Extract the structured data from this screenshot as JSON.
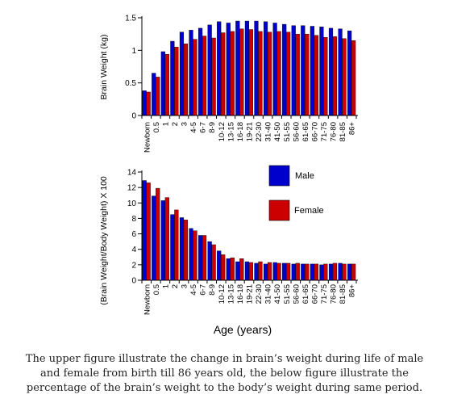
{
  "chart_data": [
    {
      "type": "bar",
      "ylabel": "Brain Weight (kg)",
      "ylim": [
        0,
        1.5
      ],
      "yticks": [
        "0",
        "0.5",
        "1",
        "1.5"
      ],
      "categories": [
        "Newborn",
        "0.5",
        "1",
        "2",
        "3",
        "4-5",
        "6-7",
        "8-9",
        "10-12",
        "13-15",
        "16-18",
        "19-21",
        "22-30",
        "31-40",
        "41-50",
        "51-55",
        "56-60",
        "61-65",
        "66-70",
        "71-75",
        "76-80",
        "81-85",
        "86+"
      ],
      "series": [
        {
          "name": "Male",
          "color": "#0000cc",
          "values": [
            0.38,
            0.65,
            0.98,
            1.14,
            1.28,
            1.31,
            1.34,
            1.39,
            1.44,
            1.42,
            1.45,
            1.45,
            1.45,
            1.44,
            1.42,
            1.4,
            1.38,
            1.38,
            1.37,
            1.36,
            1.34,
            1.33,
            1.3
          ]
        },
        {
          "name": "Female",
          "color": "#cc0000",
          "values": [
            0.36,
            0.59,
            0.94,
            1.05,
            1.1,
            1.17,
            1.22,
            1.19,
            1.27,
            1.29,
            1.33,
            1.32,
            1.29,
            1.28,
            1.29,
            1.28,
            1.25,
            1.25,
            1.23,
            1.2,
            1.21,
            1.18,
            1.15
          ]
        }
      ]
    },
    {
      "type": "bar",
      "xlabel": "Age (years)",
      "ylabel": "(Brain Weight/Body Weight) X 100",
      "ylim": [
        0,
        14
      ],
      "yticks": [
        "0",
        "2",
        "4",
        "6",
        "8",
        "10",
        "12",
        "14"
      ],
      "categories": [
        "Newborn",
        "0.5",
        "1",
        "2",
        "3",
        "4-5",
        "6-7",
        "8-9",
        "10-12",
        "13-15",
        "16-18",
        "19-21",
        "22-30",
        "31-40",
        "41-50",
        "51-55",
        "56-60",
        "61-65",
        "66-70",
        "71-75",
        "76-80",
        "81-85",
        "86+"
      ],
      "legend": {
        "placement": "right",
        "entries": [
          "Male",
          "Female"
        ]
      },
      "series": [
        {
          "name": "Male",
          "color": "#0000cc",
          "values": [
            12.9,
            10.9,
            10.3,
            8.5,
            8.1,
            6.7,
            5.8,
            5.0,
            3.8,
            2.8,
            2.4,
            2.4,
            2.2,
            2.1,
            2.3,
            2.2,
            2.1,
            2.1,
            2.1,
            2.0,
            2.1,
            2.2,
            2.1
          ]
        },
        {
          "name": "Female",
          "color": "#cc0000",
          "values": [
            12.6,
            11.9,
            10.7,
            9.1,
            7.8,
            6.4,
            5.8,
            4.6,
            3.3,
            2.9,
            2.8,
            2.3,
            2.4,
            2.3,
            2.2,
            2.2,
            2.2,
            2.1,
            2.1,
            2.1,
            2.2,
            2.1,
            2.1
          ]
        }
      ]
    }
  ],
  "caption": [
    "The upper figure illustrate the change in brain’s weight during life of male",
    "and female from birth till 86 years old, the below figure illustrate the",
    "percentage of the brain’s weight to the body’s weight  during same period."
  ]
}
